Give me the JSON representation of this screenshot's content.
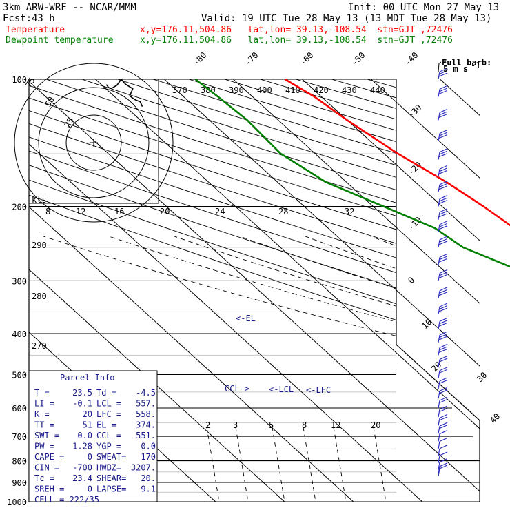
{
  "header": {
    "model": "3km ARW-WRF -- NCAR/MMM",
    "init": "Init: 00 UTC Mon 27 May 13",
    "fcst_label": "Fcst:",
    "fcst_value": "43 h",
    "valid": "Valid: 19 UTC Tue 28 May 13 (13 MDT Tue 28 May 13)",
    "temperature_label": "Temperature",
    "temperature_loc": "x,y=176.11,504.86   lat,lon= 39.13,-108.54  stn=GJT ,72476",
    "dewpoint_label": "Dewpoint temperature",
    "dewpoint_loc": "x,y=176.11,504.86   lat,lon= 39.13,-108.54  stn=GJT ,72476"
  },
  "colors": {
    "temperature": "#ff0000",
    "dewpoint": "#008000",
    "parcel_info": "#1a1a8c",
    "wind_barbs": "#3030c0"
  },
  "barb_key": {
    "title": "Full barb:",
    "value": "5 m s",
    "exponent": "-1"
  },
  "hodograph": {
    "ring_labels": [
      "25",
      "50",
      "75"
    ],
    "unit": "kts",
    "path": [
      [
        61.3,
        45.5
      ],
      [
        58.7,
        51.5
      ],
      [
        52.0,
        54.3
      ],
      [
        45.3,
        59.0
      ],
      [
        49.3,
        68.0
      ],
      [
        40.0,
        73.8
      ],
      [
        34.7,
        80.0
      ],
      [
        29.3,
        72.5
      ],
      [
        22.7,
        68.5
      ],
      [
        18.7,
        69.5
      ],
      [
        16.0,
        73.3
      ]
    ]
  },
  "chart_data": {
    "type": "line",
    "title": "",
    "xlabel": "",
    "ylabel": "",
    "pressure_levels": [
      "100",
      "200",
      "300",
      "400",
      "500",
      "600",
      "700",
      "800",
      "900",
      "1000"
    ],
    "isotherm_labels": [
      "-80",
      "-70",
      "-60",
      "-50",
      "-40",
      "-30",
      "-20",
      "-10",
      "0",
      "10",
      "20",
      "30",
      "40"
    ],
    "theta_e_labels": [
      "370",
      "380",
      "390",
      "400",
      "410",
      "420",
      "430",
      "440"
    ],
    "moist_adiabat_labels": [
      "8",
      "12",
      "16",
      "20",
      "24",
      "28",
      "32"
    ],
    "dry_adiabat_labels": [
      "290",
      "280",
      "270"
    ],
    "mixing_ratio_labels": [
      "2",
      "3",
      "5",
      "8",
      "12",
      "20"
    ],
    "series": [
      {
        "name": "Temperature",
        "points": [
          [
            1000,
            30.8
          ],
          [
            985,
            27.4
          ],
          [
            950,
            21.0
          ],
          [
            900,
            16.0
          ],
          [
            850,
            11.8
          ],
          [
            800,
            8.0
          ],
          [
            750,
            4.6
          ],
          [
            700,
            1.0
          ],
          [
            650,
            -2.5
          ],
          [
            600,
            -6.0
          ],
          [
            550,
            -9.8
          ],
          [
            500,
            -14.8
          ],
          [
            450,
            -19.5
          ],
          [
            400,
            -25.5
          ],
          [
            350,
            -32.0
          ],
          [
            300,
            -40.0
          ],
          [
            250,
            -48.0
          ],
          [
            225,
            -53.0
          ],
          [
            200,
            -54.0
          ],
          [
            175,
            -55.5
          ],
          [
            150,
            -58.0
          ],
          [
            125,
            -60.0
          ],
          [
            110,
            -61.0
          ],
          [
            100,
            -62.5
          ]
        ]
      },
      {
        "name": "Dewpoint temperature",
        "points": [
          [
            1000,
            10.3
          ],
          [
            985,
            10.0
          ],
          [
            950,
            8.7
          ],
          [
            900,
            7.0
          ],
          [
            850,
            4.5
          ],
          [
            800,
            1.2
          ],
          [
            750,
            -3.0
          ],
          [
            700,
            -7.5
          ],
          [
            650,
            -11.8
          ],
          [
            600,
            -16.0
          ],
          [
            550,
            -20.0
          ],
          [
            500,
            -24.5
          ],
          [
            450,
            -28.7
          ],
          [
            400,
            -33.0
          ],
          [
            350,
            -43.0
          ],
          [
            300,
            -57.0
          ],
          [
            250,
            -63.5
          ],
          [
            225,
            -64.5
          ],
          [
            200,
            -68.5
          ],
          [
            175,
            -73.0
          ],
          [
            150,
            -75.0
          ],
          [
            125,
            -74.5
          ],
          [
            110,
            -75.0
          ],
          [
            100,
            -75.5
          ]
        ]
      }
    ],
    "annotations": [
      "<-EL",
      "CCL->",
      "<-LCL",
      "<-LFC"
    ],
    "wind_barbs": {
      "pressures": [
        100,
        110,
        125,
        140,
        155,
        170,
        185,
        200,
        215,
        230,
        250,
        275,
        300,
        330,
        360,
        390,
        420,
        450,
        480,
        510,
        540,
        570,
        600,
        630,
        660,
        690,
        720,
        750,
        780,
        810,
        840,
        860,
        870
      ],
      "barbs": [
        3,
        3,
        3,
        3,
        3,
        3,
        3,
        3,
        3,
        3,
        3,
        3,
        3,
        3,
        3,
        3,
        3,
        3,
        2,
        2,
        2,
        2,
        2,
        2,
        2,
        2,
        1,
        1,
        1,
        1,
        1,
        1,
        1
      ]
    }
  },
  "parcel_info": {
    "title": "Parcel Info",
    "rows": [
      [
        "T  =",
        "23.5",
        "Td =",
        "-4.5"
      ],
      [
        "LI =",
        "-0.1",
        "LCL =",
        "557."
      ],
      [
        "K  =",
        "20",
        "LFC =",
        "558."
      ],
      [
        "TT =",
        "51",
        "EL  =",
        "374."
      ],
      [
        "SWI =",
        "0.0",
        "CCL =",
        "551."
      ],
      [
        "PW =",
        "1.28",
        "YGP =",
        "0.0"
      ],
      [
        "CAPE =",
        "0",
        "SWEAT=",
        "170"
      ],
      [
        "CIN =",
        "-700",
        "HWBZ=",
        "3207."
      ],
      [
        "Tc =",
        "23.4",
        "SHEAR=",
        "20."
      ],
      [
        "SREH =",
        "0",
        "LAPSE=",
        "9.1"
      ]
    ],
    "cell": "CELL = 222/35"
  }
}
